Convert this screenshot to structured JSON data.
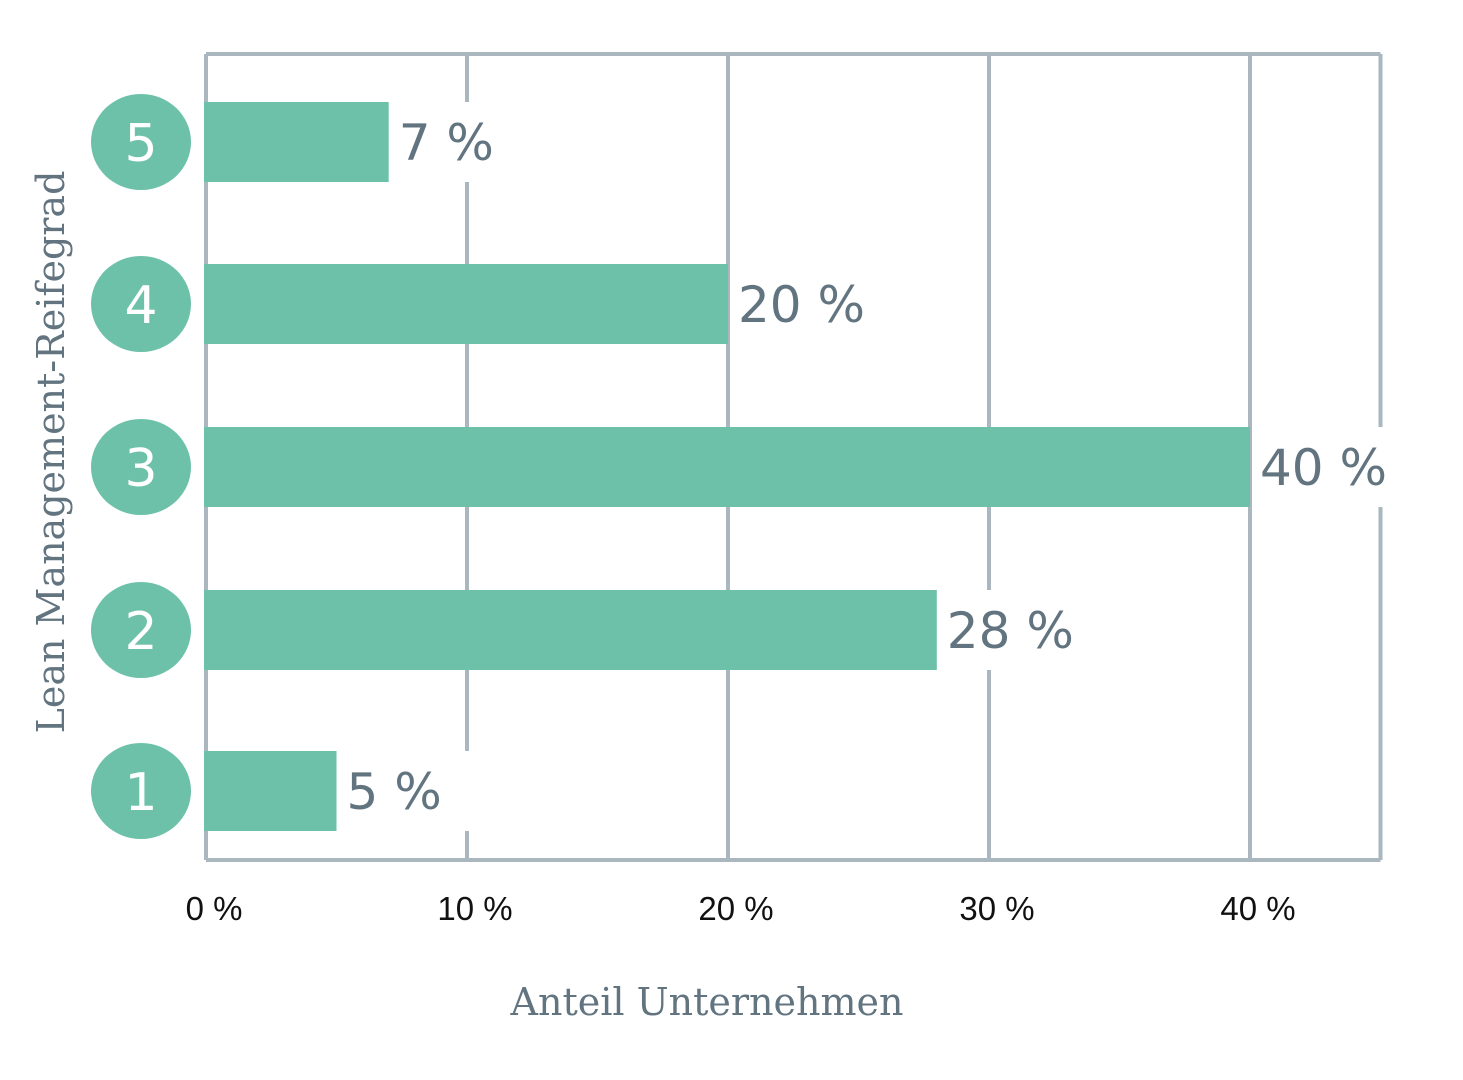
{
  "chart_data": {
    "type": "bar",
    "orientation": "horizontal",
    "categories": [
      "1",
      "2",
      "3",
      "4",
      "5"
    ],
    "values": [
      5,
      28,
      40,
      20,
      7
    ],
    "value_labels": [
      "5 %",
      "28 %",
      "40 %",
      "20 %",
      "7 %"
    ],
    "xlabel": "Anteil Unternehmen",
    "ylabel": "Lean Management-Reifegrad",
    "x_ticks": [
      0,
      10,
      20,
      30,
      40
    ],
    "x_tick_labels": [
      "0 %",
      "10 %",
      "20 %",
      "30 %",
      "40 %"
    ],
    "xlim": [
      0,
      45
    ],
    "grid": true,
    "colors": {
      "bar": "#6dc1a9",
      "grid": "#aab7bf",
      "text": "#627480",
      "tick_text": "#111111"
    }
  }
}
